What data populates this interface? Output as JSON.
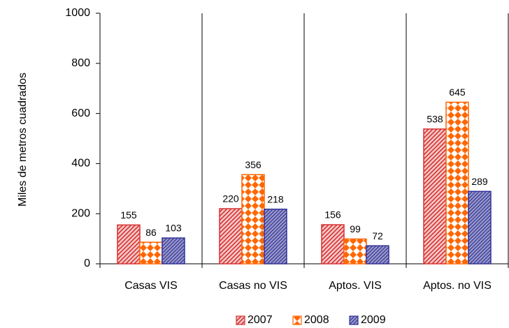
{
  "chart_data": {
    "type": "bar",
    "y_label": "Miles de metros cuadrados",
    "categories": [
      "Casas VIS",
      "Casas no VIS",
      "Aptos. VIS",
      "Aptos. no VIS"
    ],
    "series": [
      {
        "name": "2007",
        "color": "#d83030",
        "values": [
          155,
          220,
          156,
          538
        ]
      },
      {
        "name": "2008",
        "color": "#ff6600",
        "values": [
          86,
          356,
          99,
          645
        ]
      },
      {
        "name": "2009",
        "color": "#333399",
        "values": [
          103,
          218,
          72,
          289
        ]
      }
    ],
    "ylim": [
      0,
      1000
    ],
    "yticks": [
      0,
      200,
      400,
      600,
      800,
      1000
    ],
    "legend": "bottom"
  }
}
